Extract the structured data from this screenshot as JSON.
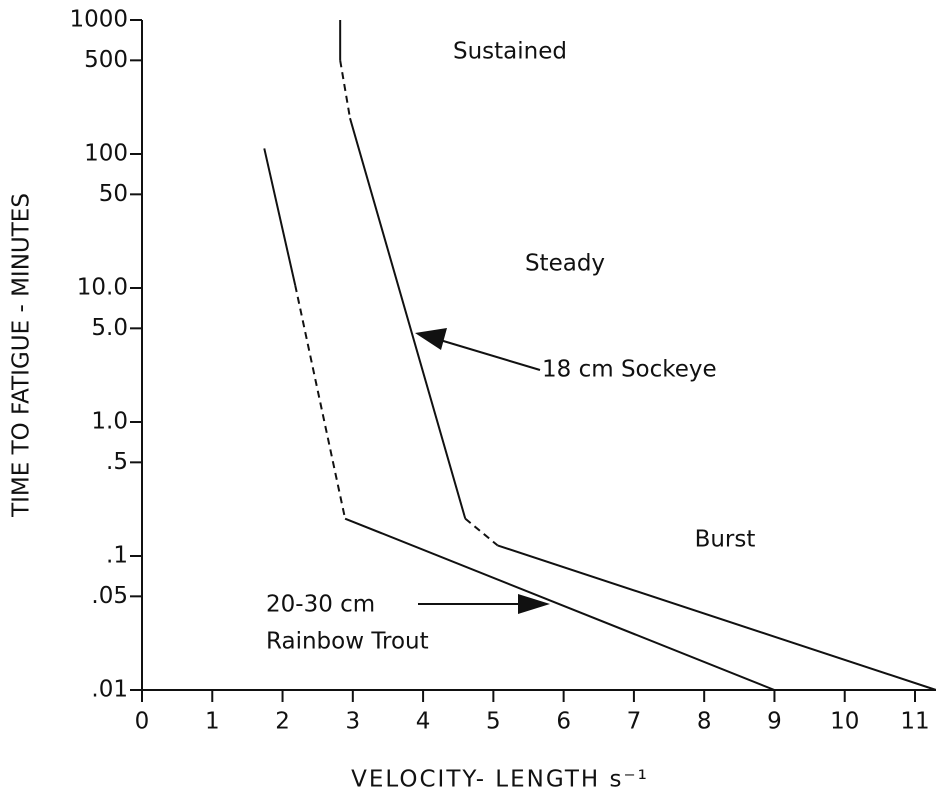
{
  "chart_data": {
    "type": "line",
    "xlabel": "VELOCITY- LENGTH s⁻¹",
    "ylabel": "TIME TO FATIGUE - MINUTES",
    "log_y": true,
    "xlim": [
      0,
      11.3
    ],
    "ylim": [
      0.01,
      1000
    ],
    "xticks": [
      0,
      1,
      2,
      3,
      4,
      5,
      6,
      7,
      8,
      9,
      10,
      11
    ],
    "yticks": [
      1000,
      500,
      100,
      50,
      {
        "value": 10,
        "label": "10.0"
      },
      {
        "value": 5,
        "label": "5.0"
      },
      {
        "value": 1,
        "label": "1.0"
      },
      {
        "value": 0.5,
        "label": ".5"
      },
      {
        "value": 0.1,
        "label": ".1"
      },
      {
        "value": 0.05,
        "label": ".05"
      },
      {
        "value": 0.01,
        "label": ".01"
      }
    ],
    "annotations": [
      "Sustained",
      "Steady",
      "Burst",
      "18 cm Sockeye",
      "20-30 cm",
      "Rainbow Trout"
    ],
    "series": [
      {
        "name": "18 cm Sockeye",
        "color": "#111111",
        "x": [
          2.82,
          2.82,
          2.96,
          4.6,
          5.06,
          11.3
        ],
        "values": [
          1000,
          500,
          185,
          0.19,
          0.12,
          0.01
        ],
        "styles": [
          "solid",
          "dashed",
          "solid",
          "dashed",
          "solid"
        ]
      },
      {
        "name": "20-30 cm Rainbow Trout",
        "color": "#111111",
        "x": [
          1.74,
          2.18,
          2.89,
          9.0
        ],
        "values": [
          110,
          10.5,
          0.19,
          0.01
        ],
        "styles": [
          "solid",
          "dashed",
          "solid"
        ]
      }
    ]
  }
}
